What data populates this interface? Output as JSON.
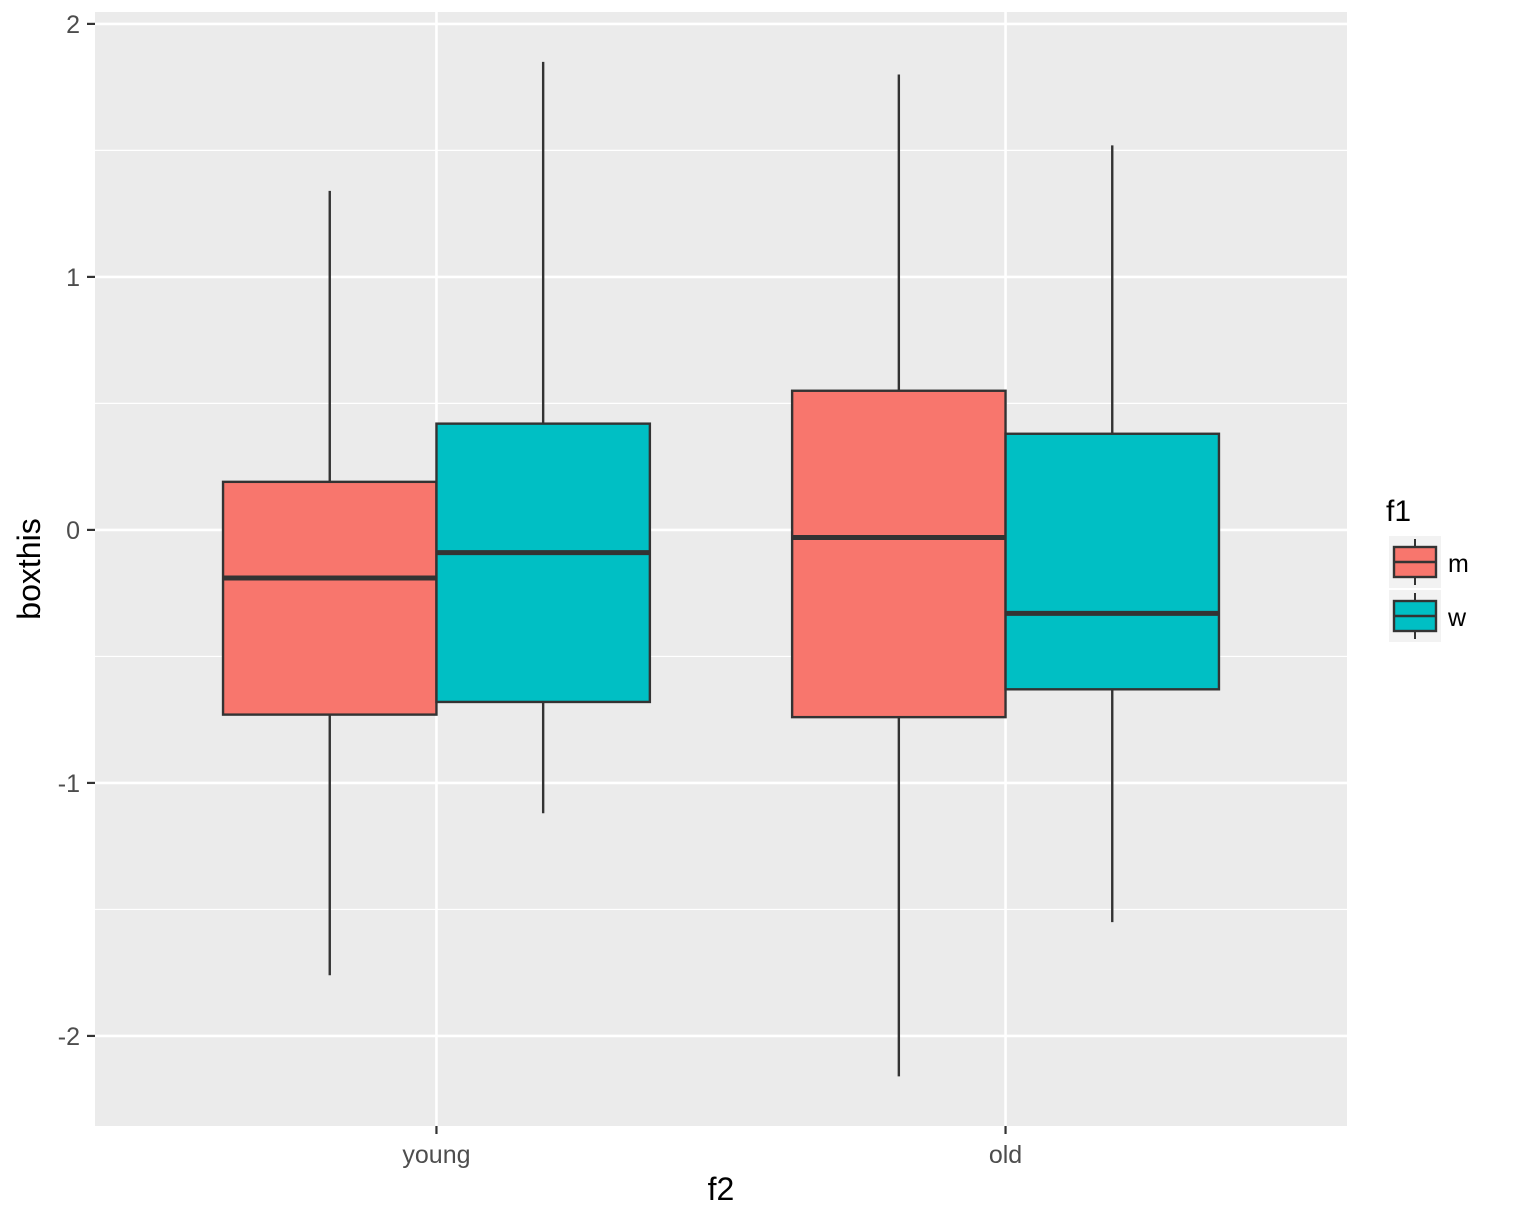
{
  "chart_data": {
    "type": "boxplot",
    "title": "",
    "xlabel": "f2",
    "ylabel": "boxthis",
    "categories": [
      "young",
      "old"
    ],
    "ylim": [
      -2.356,
      2.047
    ],
    "xlim": [
      0.4,
      2.6
    ],
    "yticks": [
      -2,
      -1,
      0,
      1,
      2
    ],
    "ytick_labels": [
      "-2",
      "-1",
      "0",
      "1",
      "2"
    ],
    "grid": true,
    "legend": {
      "title": "f1",
      "placement": "right",
      "entries": [
        {
          "label": "m",
          "color": "#F8766D"
        },
        {
          "label": "w",
          "color": "#00BFC4"
        }
      ]
    },
    "series": [
      {
        "name": "m",
        "color": "#F8766D",
        "boxes": [
          {
            "category": "young",
            "lower_whisker": -1.76,
            "q1": -0.73,
            "median": -0.19,
            "q3": 0.19,
            "upper_whisker": 1.34
          },
          {
            "category": "old",
            "lower_whisker": -2.16,
            "q1": -0.74,
            "median": -0.03,
            "q3": 0.55,
            "upper_whisker": 1.8
          }
        ]
      },
      {
        "name": "w",
        "color": "#00BFC4",
        "boxes": [
          {
            "category": "young",
            "lower_whisker": -1.12,
            "q1": -0.68,
            "median": -0.09,
            "q3": 0.42,
            "upper_whisker": 1.85
          },
          {
            "category": "old",
            "lower_whisker": -1.55,
            "q1": -0.63,
            "median": -0.33,
            "q3": 0.38,
            "upper_whisker": 1.52
          }
        ]
      }
    ]
  }
}
